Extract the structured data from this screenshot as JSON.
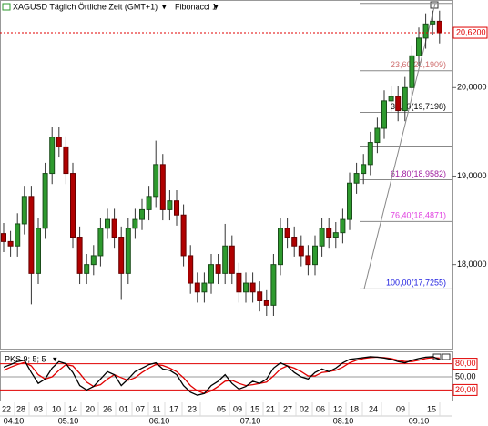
{
  "chart_data": {
    "type": "candlestick",
    "title": "XAGUSD Täglich Örtliche Zeit (GMT+1)",
    "drawing": "Fibonacci 1",
    "up_color": "#2e9a2e",
    "down_color": "#b00000",
    "ylim": [
      17.06,
      20.96
    ],
    "yticks": [
      {
        "value": 20,
        "label": "20,0000"
      },
      {
        "value": 19,
        "label": "19,0000"
      },
      {
        "value": 18,
        "label": "18,0000"
      }
    ],
    "last_price": {
      "value": 20.62,
      "label": "20,6200",
      "color": "#e00000"
    },
    "open": [
      18.35,
      18.26,
      18.21,
      18.46,
      18.77,
      17.9,
      18.41,
      19.03,
      19.44,
      19.33,
      19.03,
      18.31,
      17.9,
      18.0,
      18.1,
      18.41,
      18.51,
      18.31,
      17.9,
      18.41,
      18.51,
      18.62,
      18.77,
      19.13,
      18.62,
      18.72,
      18.56,
      18.1,
      17.79,
      17.69,
      17.79,
      18.0,
      17.9,
      18.21,
      17.9,
      17.69,
      17.79,
      17.69,
      17.59,
      17.54,
      18.0,
      18.41,
      18.31,
      18.21,
      18.1,
      18.0,
      18.21,
      18.41,
      18.31,
      18.36,
      18.51,
      18.92,
      19.03,
      19.13,
      19.38,
      19.54,
      19.85,
      19.9,
      19.74,
      20.0,
      20.36,
      20.56,
      20.72,
      20.75
    ],
    "high": [
      18.47,
      18.38,
      18.58,
      18.89,
      18.89,
      18.53,
      19.15,
      19.56,
      19.56,
      19.45,
      19.15,
      18.43,
      18.12,
      18.22,
      18.53,
      18.63,
      18.63,
      18.43,
      18.53,
      18.63,
      18.74,
      18.89,
      19.4,
      19.25,
      18.84,
      18.84,
      18.68,
      18.22,
      17.91,
      17.91,
      18.12,
      18.12,
      18.46,
      18.33,
      18.02,
      17.91,
      17.91,
      17.81,
      17.71,
      18.12,
      18.53,
      18.53,
      18.43,
      18.33,
      18.22,
      18.33,
      18.53,
      18.53,
      18.48,
      18.63,
      19.04,
      19.15,
      19.25,
      19.5,
      19.66,
      19.97,
      20.02,
      20.02,
      20.12,
      20.48,
      20.68,
      20.84,
      20.87,
      20.87
    ],
    "low": [
      18.14,
      18.09,
      18.09,
      18.34,
      17.55,
      17.78,
      18.29,
      18.91,
      19.21,
      18.91,
      18.19,
      17.78,
      17.78,
      17.88,
      17.98,
      18.29,
      18.19,
      17.6,
      17.78,
      18.29,
      18.39,
      18.5,
      18.65,
      18.5,
      18.5,
      18.44,
      17.98,
      17.67,
      17.57,
      17.57,
      17.67,
      17.78,
      17.78,
      17.78,
      17.57,
      17.57,
      17.57,
      17.47,
      17.42,
      17.42,
      17.88,
      18.19,
      18.09,
      17.98,
      17.88,
      17.88,
      18.09,
      18.19,
      18.19,
      18.24,
      18.39,
      18.8,
      18.91,
      19.01,
      19.26,
      19.42,
      19.73,
      19.62,
      19.62,
      19.88,
      20.24,
      20.44,
      20.6,
      20.5
    ],
    "close": [
      18.26,
      18.21,
      18.46,
      18.77,
      17.9,
      18.41,
      19.03,
      19.44,
      19.33,
      19.03,
      18.31,
      17.9,
      18.0,
      18.1,
      18.41,
      18.51,
      18.31,
      17.9,
      18.41,
      18.51,
      18.62,
      18.77,
      19.13,
      18.62,
      18.72,
      18.56,
      18.1,
      17.79,
      17.69,
      17.79,
      18.0,
      17.9,
      18.21,
      17.9,
      17.69,
      17.79,
      17.69,
      17.59,
      17.54,
      18.0,
      18.41,
      18.31,
      18.21,
      18.1,
      18.0,
      18.21,
      18.41,
      18.31,
      18.36,
      18.51,
      18.92,
      19.03,
      19.13,
      19.38,
      19.54,
      19.85,
      19.9,
      19.74,
      20.0,
      20.36,
      20.56,
      20.72,
      20.75,
      20.62
    ],
    "fibonacci": {
      "line_color": "#888888",
      "levels": [
        {
          "value": 20.9525
        },
        {
          "value": 20.1909,
          "label": "23,60(20,1909)",
          "color": "#d07070"
        },
        {
          "value": 19.7198,
          "label": "38,20(19,7198)",
          "color": "#000000"
        },
        {
          "value": 19.339
        },
        {
          "value": 18.9582,
          "label": "61,80(18,9582)",
          "color": "#a020a0"
        },
        {
          "value": 18.4871,
          "label": "76,40(18,4871)",
          "color": "#e040e0"
        },
        {
          "value": 17.7255,
          "label": "100,00(17,7255)",
          "color": "#2020e0"
        }
      ]
    },
    "x_labels": [
      "22",
      "28",
      "03",
      "10",
      "14",
      "20",
      "26",
      "01",
      "07",
      "11",
      "17",
      "23",
      "05",
      "09",
      "15",
      "21",
      "27",
      "02",
      "06",
      "12",
      "18",
      "24",
      "09",
      "15"
    ],
    "month_labels": [
      "04.10",
      "05.10",
      "06.10",
      "07.10",
      "08.10",
      "09.10"
    ],
    "oscillator": {
      "title": "PKS 9; 5; 5",
      "ylim": [
        0,
        100
      ],
      "levels": [
        {
          "value": 80,
          "label": "80,00",
          "color": "#e00000"
        },
        {
          "value": 50,
          "label": "50,00",
          "color": "#999999"
        },
        {
          "value": 20,
          "label": "20,00",
          "color": "#e00000"
        }
      ],
      "series": [
        {
          "color": "#000000",
          "values": [
            72,
            78,
            85,
            88,
            60,
            35,
            45,
            70,
            85,
            80,
            60,
            30,
            20,
            28,
            45,
            62,
            55,
            30,
            45,
            62,
            70,
            78,
            82,
            68,
            65,
            55,
            30,
            15,
            8,
            12,
            30,
            40,
            55,
            35,
            22,
            28,
            40,
            35,
            45,
            70,
            82,
            75,
            60,
            50,
            45,
            60,
            68,
            62,
            70,
            82,
            90,
            92,
            94,
            96,
            95,
            93,
            90,
            85,
            82,
            88,
            92,
            95,
            96,
            90
          ]
        },
        {
          "color": "#e00000",
          "values": [
            65,
            72,
            78,
            83,
            75,
            55,
            45,
            50,
            65,
            78,
            75,
            58,
            38,
            28,
            32,
            45,
            55,
            48,
            42,
            48,
            60,
            70,
            78,
            76,
            70,
            62,
            48,
            30,
            18,
            12,
            18,
            28,
            40,
            42,
            35,
            30,
            32,
            35,
            38,
            52,
            68,
            75,
            70,
            62,
            52,
            52,
            60,
            62,
            65,
            72,
            82,
            88,
            92,
            94,
            95,
            94,
            92,
            88,
            85,
            85,
            88,
            92,
            94,
            93
          ]
        }
      ]
    }
  }
}
